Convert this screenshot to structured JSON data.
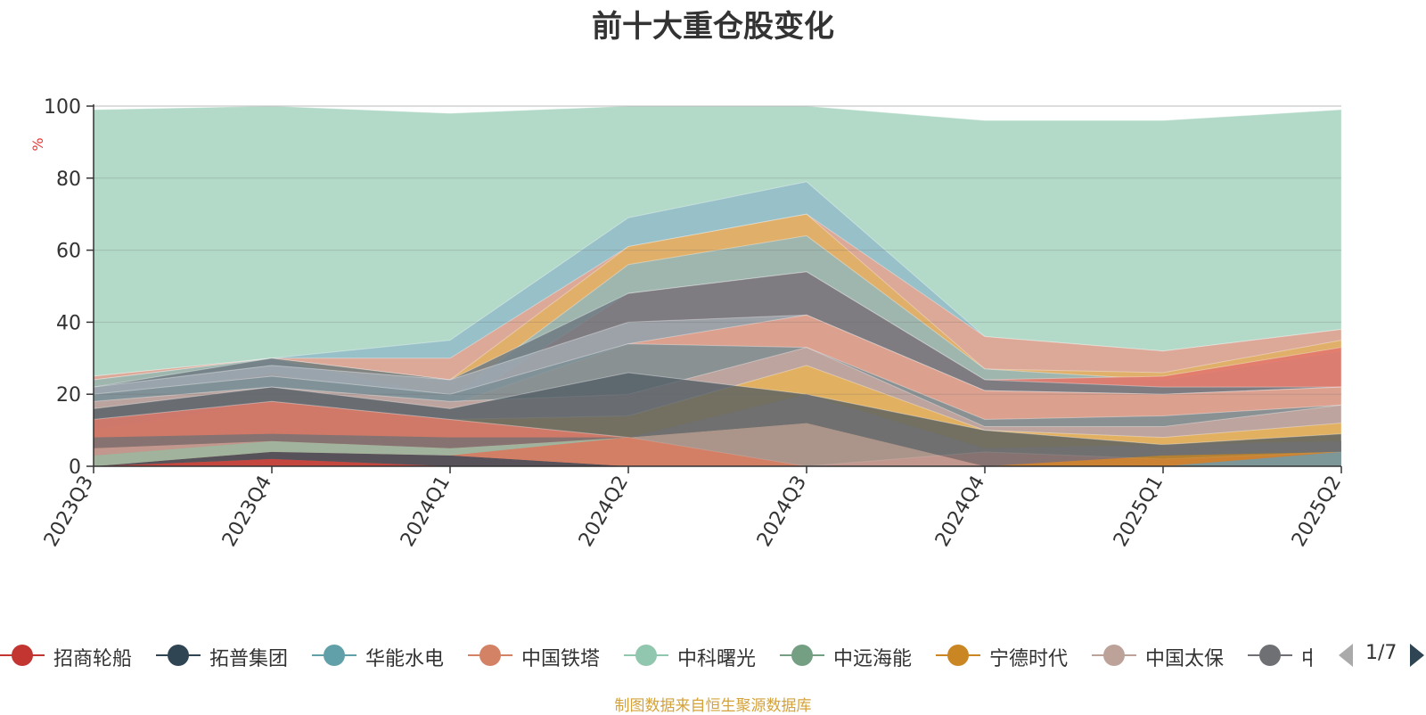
{
  "chart_data": {
    "type": "area",
    "stacked": true,
    "title": "前十大重仓股变化",
    "ylabel": "%",
    "ylim": [
      0,
      100
    ],
    "yticks": [
      0,
      20,
      40,
      60,
      80,
      100
    ],
    "categories": [
      "2023Q3",
      "2023Q4",
      "2024Q1",
      "2024Q2",
      "2024Q3",
      "2024Q4",
      "2025Q1",
      "2025Q2"
    ],
    "grid": true,
    "legend_position": "bottom",
    "source": "制图数据来自恒生聚源数据库",
    "series": [
      {
        "name": "招商轮船",
        "color": "#c23531",
        "values": [
          0,
          2,
          0,
          0,
          0,
          0,
          0,
          0
        ]
      },
      {
        "name": "拓普集团",
        "color": "#2f4554",
        "values": [
          0,
          2,
          3,
          0,
          0,
          0,
          0,
          0
        ]
      },
      {
        "name": "华能水电",
        "color": "#61a0a8",
        "values": [
          0,
          0,
          0,
          0,
          0,
          0,
          0,
          4
        ]
      },
      {
        "name": "中国铁塔",
        "color": "#d48265",
        "values": [
          0,
          0,
          0,
          8,
          0,
          0,
          0,
          0
        ]
      },
      {
        "name": "中科曙光",
        "color": "#91c7ae",
        "values": [
          3,
          3,
          2,
          0,
          0,
          0,
          0,
          0
        ]
      },
      {
        "name": "中远海能",
        "color": "#749f83",
        "values": [
          0,
          0,
          0,
          0,
          0,
          0,
          0,
          0
        ]
      },
      {
        "name": "宁德时代",
        "color": "#ca8622",
        "values": [
          0,
          0,
          0,
          0,
          0,
          0,
          3,
          0
        ]
      },
      {
        "name": "中国太保",
        "color": "#bda29a",
        "values": [
          2,
          0,
          0,
          0,
          12,
          0,
          0,
          0
        ]
      },
      {
        "name": "中芯国际",
        "color": "#6e7074",
        "values": [
          3,
          2,
          3,
          0,
          8,
          5,
          3,
          3
        ]
      }
    ]
  },
  "legend": {
    "items": [
      {
        "name": "招商轮船",
        "color": "#c23531"
      },
      {
        "name": "拓普集团",
        "color": "#2f4554"
      },
      {
        "name": "华能水电",
        "color": "#61a0a8"
      },
      {
        "name": "中国铁塔",
        "color": "#d48265"
      },
      {
        "name": "中科曙光",
        "color": "#91c7ae"
      },
      {
        "name": "中远海能",
        "color": "#749f83"
      },
      {
        "name": "宁德时代",
        "color": "#ca8622"
      },
      {
        "name": "中国太保",
        "color": "#bda29a"
      },
      {
        "name": "中芯国际",
        "color": "#6e7074"
      }
    ],
    "page": "1/7"
  },
  "background_bands": [
    {
      "color": "#e07a6a",
      "opacity": 0.85,
      "values": [
        13,
        18,
        13,
        8,
        0,
        4,
        2,
        4
      ]
    },
    {
      "color": "#4d5b63",
      "opacity": 0.75,
      "values": [
        16,
        22,
        16,
        26,
        20,
        10,
        6,
        9
      ]
    },
    {
      "color": "#e6b15a",
      "opacity": 0.9,
      "values": [
        10,
        18,
        13,
        14,
        28,
        10,
        8,
        12
      ]
    },
    {
      "color": "#c9a9a1",
      "opacity": 0.8,
      "values": [
        18,
        22,
        18,
        20,
        33,
        11,
        11,
        17
      ]
    },
    {
      "color": "#7b8e94",
      "opacity": 0.85,
      "values": [
        20,
        25,
        20,
        34,
        33,
        13,
        14,
        17
      ]
    },
    {
      "color": "#e6a08a",
      "opacity": 0.85,
      "values": [
        16,
        20,
        17,
        34,
        42,
        21,
        20,
        22
      ]
    },
    {
      "color": "#aab2ba",
      "opacity": 0.7,
      "values": [
        22,
        28,
        24,
        40,
        42,
        21,
        20,
        22
      ]
    },
    {
      "color": "#6e7b84",
      "opacity": 0.85,
      "values": [
        22,
        30,
        24,
        48,
        54,
        24,
        22,
        22
      ]
    },
    {
      "color": "#e2776c",
      "opacity": 0.9,
      "values": [
        18,
        26,
        16,
        48,
        54,
        24,
        25,
        33
      ]
    },
    {
      "color": "#8fb8bf",
      "opacity": 0.8,
      "values": [
        24,
        30,
        19,
        56,
        64,
        27,
        24,
        32
      ]
    },
    {
      "color": "#e0b060",
      "opacity": 0.85,
      "values": [
        24,
        30,
        24,
        61,
        70,
        27,
        26,
        35
      ]
    },
    {
      "color": "#e7a38e",
      "opacity": 0.85,
      "values": [
        25,
        30,
        30,
        61,
        70,
        36,
        32,
        38
      ]
    },
    {
      "color": "#93bbc8",
      "opacity": 0.85,
      "values": [
        25,
        30,
        35,
        69,
        79,
        36,
        32,
        38
      ]
    },
    {
      "color": "#b3dac9",
      "opacity": 1.0,
      "values": [
        99,
        100,
        98,
        100,
        100,
        96,
        96,
        99
      ]
    }
  ]
}
